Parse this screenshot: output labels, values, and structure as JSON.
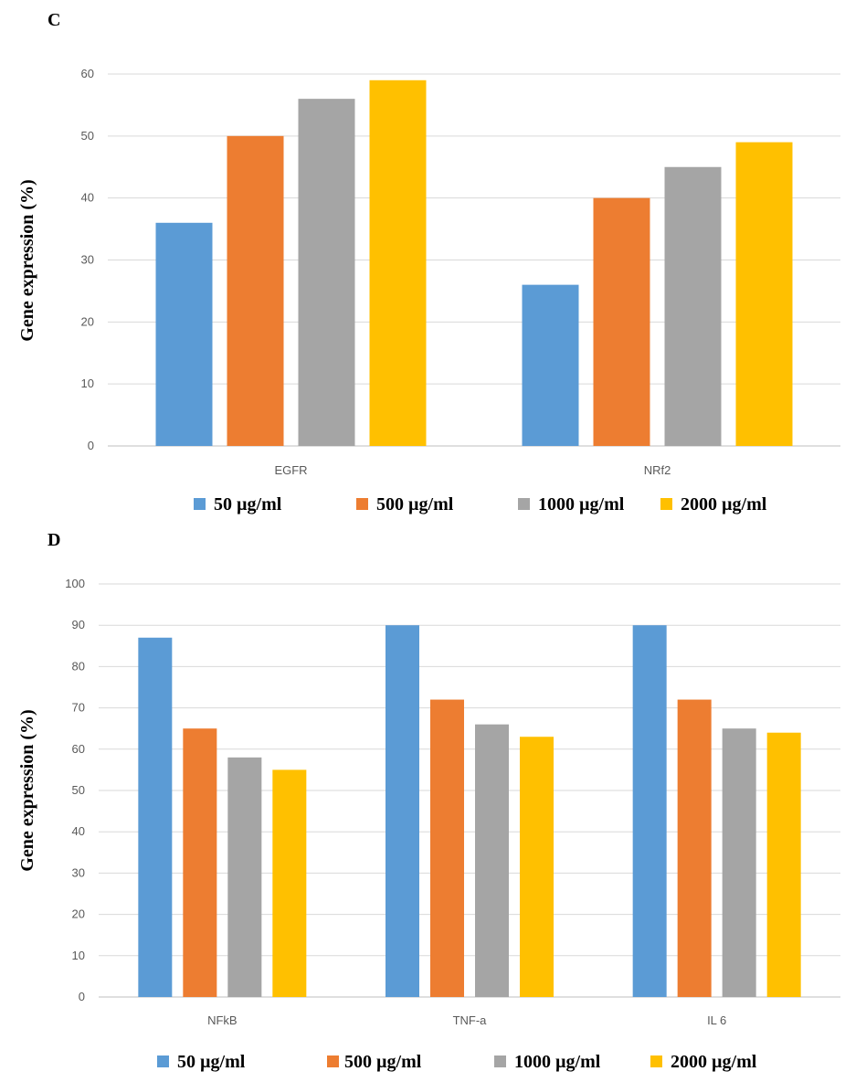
{
  "chart_data": [
    {
      "panel": "C",
      "type": "bar",
      "ylabel": "Gene expression (%)",
      "ylim": [
        0,
        60
      ],
      "yticks": [
        0,
        10,
        20,
        30,
        40,
        50,
        60
      ],
      "grid": true,
      "legend_position": "bottom",
      "categories": [
        "EGFR",
        "NRf2"
      ],
      "series": [
        {
          "name": "50 µg/ml",
          "color": "#5b9bd5",
          "values": [
            36,
            26
          ]
        },
        {
          "name": "500 µg/ml",
          "color": "#ed7d31",
          "values": [
            50,
            40
          ]
        },
        {
          "name": "1000 µg/ml",
          "color": "#a5a5a5",
          "values": [
            56,
            45
          ]
        },
        {
          "name": "2000 µg/ml",
          "color": "#ffc000",
          "values": [
            59,
            49
          ]
        }
      ]
    },
    {
      "panel": "D",
      "type": "bar",
      "ylabel": "Gene expression (%)",
      "ylim": [
        0,
        100
      ],
      "yticks": [
        0,
        10,
        20,
        30,
        40,
        50,
        60,
        70,
        80,
        90,
        100
      ],
      "grid": true,
      "legend_position": "bottom",
      "categories": [
        "NFkB",
        "TNF-a",
        "IL 6"
      ],
      "series": [
        {
          "name": "50 µg/ml",
          "color": "#5b9bd5",
          "values": [
            87,
            90,
            90
          ]
        },
        {
          "name": "500 µg/ml",
          "color": "#ed7d31",
          "values": [
            65,
            72,
            72
          ]
        },
        {
          "name": "1000 µg/ml",
          "color": "#a5a5a5",
          "values": [
            58,
            66,
            65
          ]
        },
        {
          "name": "2000 µg/ml",
          "color": "#ffc000",
          "values": [
            55,
            63,
            64
          ]
        }
      ]
    }
  ]
}
